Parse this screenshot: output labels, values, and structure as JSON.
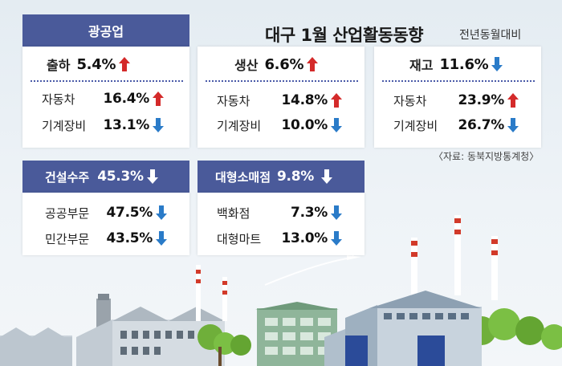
{
  "header": {
    "title": "대구 1월 산업활동동향",
    "subtitle": "전년동월대비",
    "source": "〈자료: 동북지방통계청〉"
  },
  "mining": {
    "tag": "광공업",
    "main": {
      "label": "출하",
      "value": "5.4%",
      "direction": "up"
    },
    "items": [
      {
        "label": "자동차",
        "value": "16.4%",
        "direction": "up"
      },
      {
        "label": "기계장비",
        "value": "13.1%",
        "direction": "down"
      }
    ]
  },
  "production": {
    "main": {
      "label": "생산",
      "value": "6.6%",
      "direction": "up"
    },
    "items": [
      {
        "label": "자동차",
        "value": "14.8%",
        "direction": "up"
      },
      {
        "label": "기계장비",
        "value": "10.0%",
        "direction": "down"
      }
    ]
  },
  "inventory": {
    "main": {
      "label": "재고",
      "value": "11.6%",
      "direction": "down"
    },
    "items": [
      {
        "label": "자동차",
        "value": "23.9%",
        "direction": "up"
      },
      {
        "label": "기계장비",
        "value": "26.7%",
        "direction": "down"
      }
    ]
  },
  "construction": {
    "main": {
      "label": "건설수주",
      "value": "45.3%",
      "direction": "down"
    },
    "items": [
      {
        "label": "공공부문",
        "value": "47.5%",
        "direction": "down"
      },
      {
        "label": "민간부문",
        "value": "43.5%",
        "direction": "down"
      }
    ]
  },
  "retail": {
    "main": {
      "label": "대형소매점",
      "value": "9.8%",
      "direction": "down"
    },
    "items": [
      {
        "label": "백화점",
        "value": "7.3%",
        "direction": "down"
      },
      {
        "label": "대형마트",
        "value": "13.0%",
        "direction": "down"
      }
    ]
  },
  "colors": {
    "tag_bg": "#4a5a9a",
    "arrow_up": "#d42a2a",
    "arrow_down": "#2a7bc8",
    "separator": "#4a5ba8"
  },
  "chart_data": {
    "type": "table",
    "title": "대구 1월 산업활동동향",
    "subtitle": "전년동월대비",
    "categories": [
      "출하",
      "자동차",
      "기계장비",
      "생산",
      "자동차",
      "기계장비",
      "재고",
      "자동차",
      "기계장비",
      "건설수주",
      "공공부문",
      "민간부문",
      "대형소매점",
      "백화점",
      "대형마트"
    ],
    "values": [
      5.4,
      16.4,
      -13.1,
      6.6,
      14.8,
      -10.0,
      -11.6,
      23.9,
      -26.7,
      -45.3,
      -47.5,
      -43.5,
      -9.8,
      -7.3,
      -13.0
    ]
  }
}
